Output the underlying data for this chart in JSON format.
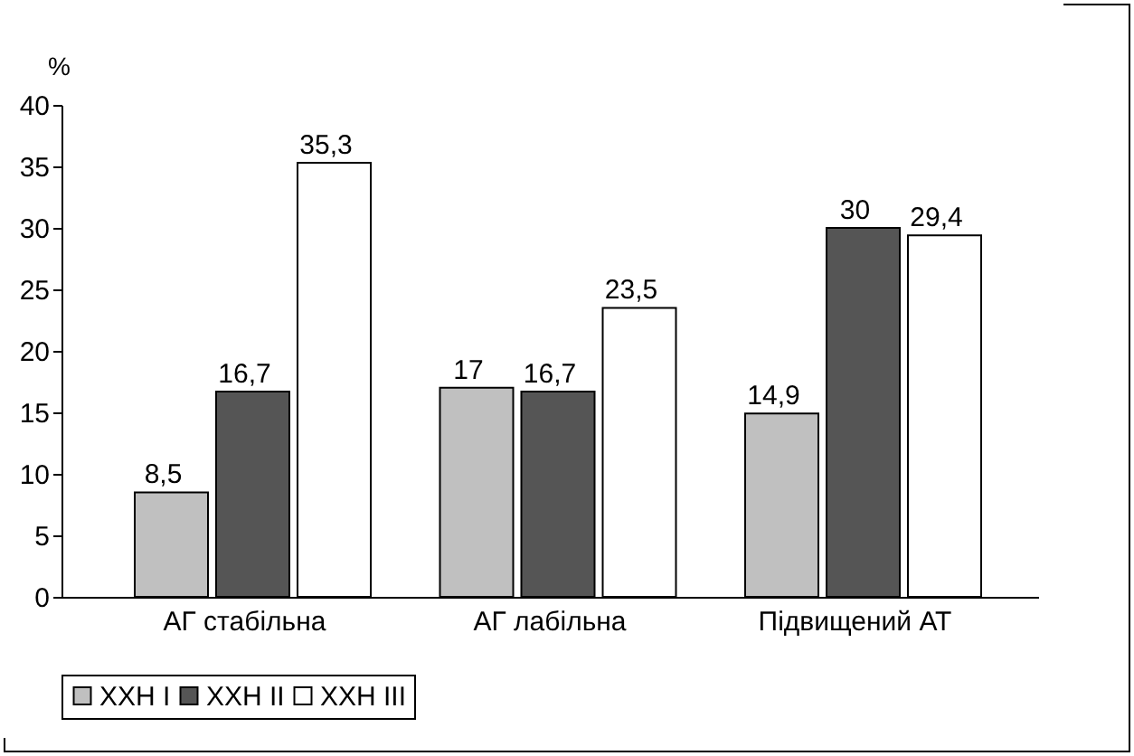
{
  "chart_data": {
    "type": "bar",
    "ylabel": "%",
    "categories": [
      "АГ стабільна",
      "АГ лабільна",
      "Підвищений АТ"
    ],
    "series": [
      {
        "name": "ХХН I",
        "color": "#c0c0c0",
        "values": [
          8.5,
          17,
          14.9
        ],
        "value_labels": [
          "8,5",
          "17",
          "14,9"
        ]
      },
      {
        "name": "ХХН II",
        "color": "#555555",
        "values": [
          16.7,
          16.7,
          30
        ],
        "value_labels": [
          "16,7",
          "16,7",
          "30"
        ]
      },
      {
        "name": "ХХН III",
        "color": "#ffffff",
        "values": [
          35.3,
          23.5,
          29.4
        ],
        "value_labels": [
          "35,3",
          "23,5",
          "29,4"
        ]
      }
    ],
    "ylim": [
      0,
      40
    ],
    "yticks": [
      0,
      5,
      10,
      15,
      20,
      25,
      30,
      35,
      40
    ],
    "grid": false,
    "legend": "bottom"
  }
}
